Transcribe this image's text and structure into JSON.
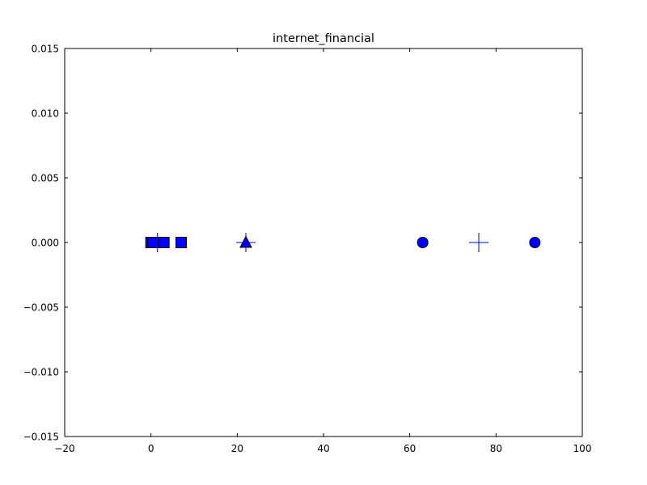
{
  "chart_data": {
    "type": "scatter",
    "title": "internet_financial",
    "xlabel": "",
    "ylabel": "",
    "xlim": [
      -20,
      100
    ],
    "ylim": [
      -0.015,
      0.015
    ],
    "xticks": [
      "−20",
      "0",
      "20",
      "40",
      "60",
      "80",
      "100"
    ],
    "yticks": [
      "0.015",
      "0.010",
      "0.005",
      "0.000",
      "−0.005",
      "−0.010",
      "−0.015"
    ],
    "grid": false,
    "legend": "none",
    "marker_color": "#0000ff",
    "points": [
      {
        "x": 0,
        "y": 0,
        "marker": "square"
      },
      {
        "x": 0.5,
        "y": 0,
        "marker": "square"
      },
      {
        "x": 1,
        "y": 0,
        "marker": "square"
      },
      {
        "x": 1.5,
        "y": 0,
        "marker": "plus"
      },
      {
        "x": 3,
        "y": 0,
        "marker": "square"
      },
      {
        "x": 7,
        "y": 0,
        "marker": "square"
      },
      {
        "x": 22,
        "y": 0,
        "marker": "plus"
      },
      {
        "x": 22,
        "y": 0,
        "marker": "triangle"
      },
      {
        "x": 63,
        "y": 0,
        "marker": "circle"
      },
      {
        "x": 76,
        "y": 0,
        "marker": "plus"
      },
      {
        "x": 89,
        "y": 0,
        "marker": "circle"
      }
    ]
  }
}
